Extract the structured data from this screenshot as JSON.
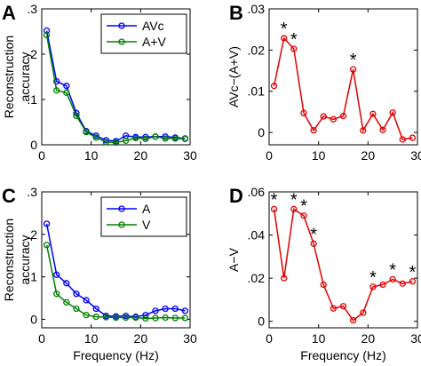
{
  "chart_data": [
    {
      "panel": "A",
      "type": "line",
      "xlabel": "",
      "ylabel_lines": [
        "Reconstruction",
        "accuracy"
      ],
      "xlim": [
        0,
        30
      ],
      "ylim": [
        0,
        0.3
      ],
      "xticks": [
        0,
        10,
        20,
        30
      ],
      "xtick_labels": [
        "0",
        "10",
        "20",
        "30"
      ],
      "yticks": [
        0,
        0.1,
        0.2,
        0.3
      ],
      "ytick_labels": [
        "0",
        ".1",
        ".2",
        ".3"
      ],
      "legend_position": "top-right",
      "x": [
        1,
        3,
        5,
        7,
        9,
        11,
        13,
        15,
        17,
        19,
        21,
        23,
        25,
        27,
        29
      ],
      "series": [
        {
          "name": "AVc",
          "color": "#0000ff",
          "values": [
            0.252,
            0.14,
            0.13,
            0.07,
            0.03,
            0.02,
            0.01,
            0.008,
            0.02,
            0.017,
            0.017,
            0.018,
            0.018,
            0.016,
            0.014
          ]
        },
        {
          "name": "A+V",
          "color": "#008000",
          "values": [
            0.242,
            0.12,
            0.115,
            0.064,
            0.028,
            0.016,
            0.006,
            0.005,
            0.009,
            0.015,
            0.013,
            0.018,
            0.014,
            0.014,
            0.013
          ]
        }
      ],
      "annotations": []
    },
    {
      "panel": "B",
      "type": "line",
      "xlabel": "",
      "ylabel_lines": [
        "AVc−(A+V)"
      ],
      "xlim": [
        0,
        30
      ],
      "ylim": [
        -0.003,
        0.03
      ],
      "xticks": [
        0,
        10,
        20,
        30
      ],
      "xtick_labels": [
        "0",
        "10",
        "20",
        "30"
      ],
      "yticks": [
        0,
        0.01,
        0.02,
        0.03
      ],
      "ytick_labels": [
        "0",
        ".01",
        ".02",
        ".03"
      ],
      "legend_position": "",
      "x": [
        1,
        3,
        5,
        7,
        9,
        11,
        13,
        15,
        17,
        19,
        21,
        23,
        25,
        27,
        29
      ],
      "series": [
        {
          "name": "",
          "color": "#e00000",
          "values": [
            0.0113,
            0.0229,
            0.0203,
            0.0047,
            0.0005,
            0.0039,
            0.0032,
            0.004,
            0.0153,
            0.0005,
            0.0045,
            0.0006,
            0.0048,
            -0.0017,
            -0.0013
          ]
        }
      ],
      "annotations": [
        {
          "x": 3,
          "text": "*"
        },
        {
          "x": 5,
          "text": "*"
        },
        {
          "x": 17,
          "text": "*"
        }
      ]
    },
    {
      "panel": "C",
      "type": "line",
      "xlabel": "Frequency (Hz)",
      "ylabel_lines": [
        "Reconstruction",
        "accuracy"
      ],
      "xlim": [
        0,
        30
      ],
      "ylim": [
        -0.02,
        0.3
      ],
      "xticks": [
        0,
        10,
        20,
        30
      ],
      "xtick_labels": [
        "0",
        "10",
        "20",
        "30"
      ],
      "yticks": [
        0,
        0.1,
        0.2,
        0.3
      ],
      "ytick_labels": [
        "0",
        ".1",
        ".2",
        ".3"
      ],
      "legend_position": "top-right",
      "x": [
        1,
        3,
        5,
        7,
        9,
        11,
        13,
        15,
        17,
        19,
        21,
        23,
        25,
        27,
        29
      ],
      "series": [
        {
          "name": "A",
          "color": "#0000ff",
          "values": [
            0.225,
            0.105,
            0.085,
            0.06,
            0.045,
            0.025,
            0.008,
            0.007,
            0.008,
            0.006,
            0.01,
            0.02,
            0.025,
            0.025,
            0.02
          ]
        },
        {
          "name": "V",
          "color": "#008000",
          "values": [
            0.175,
            0.06,
            0.04,
            0.025,
            0.01,
            0.006,
            0.005,
            0.004,
            0.004,
            0.004,
            0.002,
            0.003,
            0.004,
            0.003,
            0.003
          ]
        }
      ],
      "annotations": []
    },
    {
      "panel": "D",
      "type": "line",
      "xlabel": "Frequency (Hz)",
      "ylabel_lines": [
        "A−V"
      ],
      "xlim": [
        0,
        30
      ],
      "ylim": [
        -0.003,
        0.06
      ],
      "xticks": [
        0,
        10,
        20,
        30
      ],
      "xtick_labels": [
        "0",
        "10",
        "20",
        "30"
      ],
      "yticks": [
        0,
        0.02,
        0.04,
        0.06
      ],
      "ytick_labels": [
        "0",
        ".02",
        ".04",
        ".06"
      ],
      "legend_position": "",
      "x": [
        1,
        3,
        5,
        7,
        9,
        11,
        13,
        15,
        17,
        19,
        21,
        23,
        25,
        27,
        29
      ],
      "series": [
        {
          "name": "",
          "color": "#e00000",
          "values": [
            0.052,
            0.02,
            0.052,
            0.049,
            0.036,
            0.017,
            0.006,
            0.007,
            0.0005,
            0.004,
            0.016,
            0.017,
            0.0195,
            0.0175,
            0.0185
          ]
        }
      ],
      "annotations": [
        {
          "x": 1,
          "text": "*"
        },
        {
          "x": 5,
          "text": "*"
        },
        {
          "x": 7,
          "text": "*"
        },
        {
          "x": 9,
          "text": "*"
        },
        {
          "x": 21,
          "text": "*"
        },
        {
          "x": 25,
          "text": "*"
        },
        {
          "x": 29,
          "text": "*"
        }
      ]
    }
  ],
  "panel_letters": [
    "A",
    "B",
    "C",
    "D"
  ]
}
